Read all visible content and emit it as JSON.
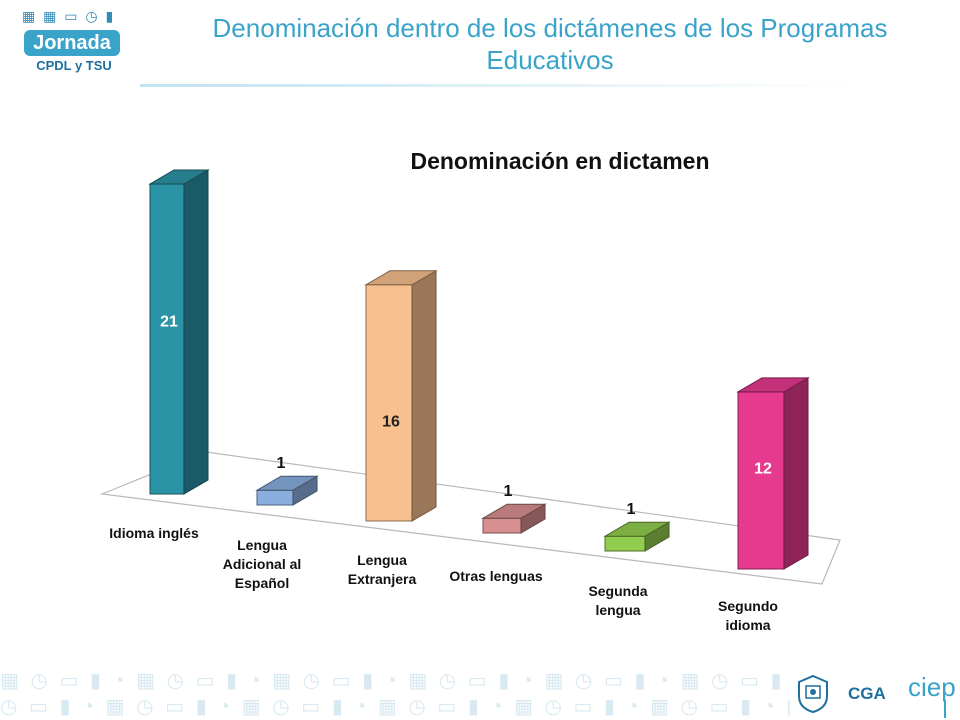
{
  "header": {
    "title": "Denominación dentro de los dictámenes de los Programas Educativos"
  },
  "logo": {
    "main": "Jornada",
    "sub": "CPDL y TSU"
  },
  "footer": {
    "cga": "CGA",
    "ciep": "ciep"
  },
  "colors": {
    "accent": "#3aa3c9",
    "dark_accent": "#1f6fa0"
  },
  "chart_data": {
    "type": "bar",
    "title": "Denominación en dictamen",
    "xlabel": "",
    "ylabel": "",
    "categories": [
      "Idioma inglés",
      "Lengua Adicional al Español",
      "Lengua Extranjera",
      "Otras lenguas",
      "Segunda lengua",
      "Segundo idioma"
    ],
    "values": [
      21,
      1,
      16,
      1,
      1,
      12
    ],
    "bar_colors": [
      "#2b93a6",
      "#8aaede",
      "#f7c08e",
      "#d88f8f",
      "#93cd4f",
      "#e63a8f"
    ],
    "data_labels": [
      "21",
      "1",
      "16",
      "1",
      "1",
      "12"
    ],
    "ylim": [
      0,
      21
    ],
    "grid": false,
    "legend": "none",
    "style": "3d-columns"
  }
}
